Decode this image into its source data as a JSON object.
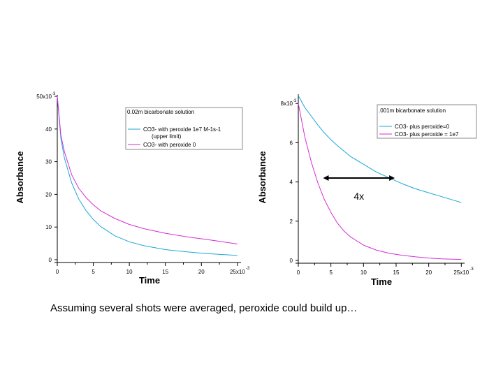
{
  "caption": "Assuming several shots were averaged, peroxide could build up…",
  "chart_data": [
    {
      "type": "line",
      "legend_title": "0.02m bicarbonate solution",
      "legend_position": "top-right",
      "xlabel": "Time",
      "ylabel": "Absorbance",
      "x_exponent": "-3",
      "y_exponent": "-3",
      "xlim": [
        0,
        25.5
      ],
      "ylim": [
        0,
        50
      ],
      "xticks": [
        "0",
        "5",
        "10",
        "15",
        "20",
        "25x10"
      ],
      "yticks": [
        "0",
        "10",
        "20",
        "30",
        "40",
        "50x10"
      ],
      "xtick_values": [
        0,
        5,
        10,
        15,
        20,
        25
      ],
      "ytick_values": [
        0,
        10,
        20,
        30,
        40,
        50
      ],
      "series": [
        {
          "name": "CO3- with peroxide 1e7 M-1s-1",
          "name_line2": "(upper limit)",
          "color": "#1aa7d6",
          "x": [
            0,
            0.5,
            1,
            2,
            3,
            4,
            5,
            6,
            8,
            10,
            12,
            15,
            18,
            20,
            22,
            25
          ],
          "y": [
            50,
            37,
            31,
            23.5,
            18.5,
            15,
            12.3,
            10.2,
            7.3,
            5.5,
            4.3,
            3.1,
            2.4,
            2.0,
            1.7,
            1.3
          ]
        },
        {
          "name": "CO3- with peroxide 0",
          "color": "#d62cd6",
          "x": [
            0,
            0.5,
            1,
            2,
            3,
            4,
            5,
            6,
            8,
            10,
            12,
            15,
            18,
            20,
            22,
            25
          ],
          "y": [
            50,
            38,
            33,
            26,
            21.8,
            19,
            16.8,
            15,
            12.6,
            10.8,
            9.5,
            8.1,
            7.0,
            6.4,
            5.8,
            4.8
          ]
        }
      ]
    },
    {
      "type": "line",
      "legend_title": ".001m bicarbonate solution",
      "legend_position": "top-right",
      "xlabel": "Time",
      "ylabel": "Absorbance",
      "x_exponent": "-3",
      "y_exponent": "-3",
      "xlim": [
        0,
        25.5
      ],
      "ylim": [
        0,
        8.4
      ],
      "xticks": [
        "0",
        "5",
        "10",
        "15",
        "20",
        "25x10"
      ],
      "yticks": [
        "0",
        "2",
        "4",
        "6",
        "8x10"
      ],
      "xtick_values": [
        0,
        5,
        10,
        15,
        20,
        25
      ],
      "ytick_values": [
        0,
        2,
        4,
        6,
        8
      ],
      "annotation": "4x",
      "arrow_y": 4.2,
      "arrow_x": [
        3.8,
        14.8
      ],
      "series": [
        {
          "name": "CO3- plus peroxide=0",
          "color": "#1aa7d6",
          "x": [
            0,
            1,
            2,
            3,
            4,
            5,
            6,
            8,
            10,
            12,
            14,
            15,
            16,
            18,
            20,
            22,
            24,
            25
          ],
          "y": [
            8.4,
            7.8,
            7.35,
            6.9,
            6.5,
            6.15,
            5.85,
            5.3,
            4.9,
            4.5,
            4.2,
            4.05,
            3.9,
            3.65,
            3.45,
            3.25,
            3.05,
            2.95
          ]
        },
        {
          "name": "CO3- plus peroxide = 1e7",
          "color": "#d62cd6",
          "x": [
            0,
            1,
            2,
            3,
            4,
            5,
            6,
            7,
            8,
            10,
            12,
            14,
            16,
            18,
            20,
            22,
            25
          ],
          "y": [
            8.0,
            6.3,
            5.0,
            3.95,
            3.1,
            2.45,
            1.9,
            1.5,
            1.2,
            0.78,
            0.52,
            0.36,
            0.26,
            0.18,
            0.12,
            0.08,
            0.05
          ]
        }
      ]
    }
  ]
}
